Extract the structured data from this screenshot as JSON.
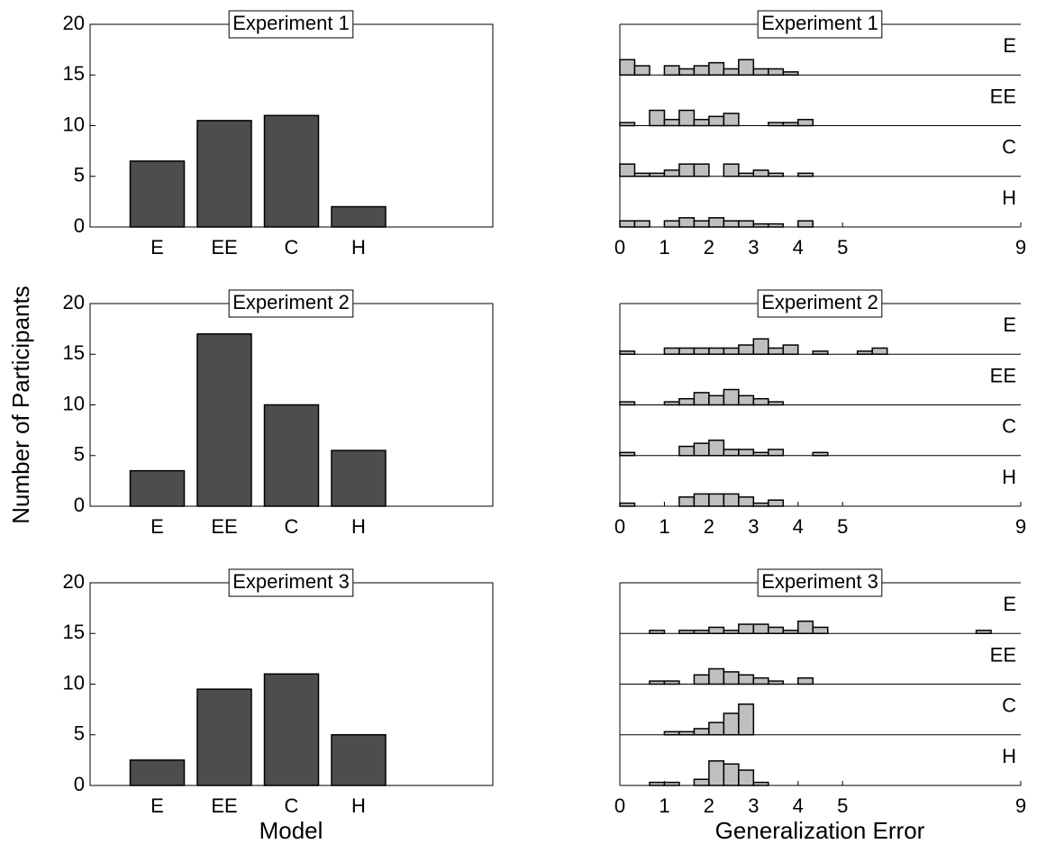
{
  "chart_data": [
    {
      "type": "bar",
      "title": "Experiment 1",
      "categories": [
        "E",
        "EE",
        "C",
        "H"
      ],
      "values": [
        6.5,
        10.5,
        11,
        2
      ],
      "color": "#4d4d4d",
      "ylim": [
        0,
        20
      ],
      "yticks": [
        0,
        5,
        10,
        15,
        20
      ]
    },
    {
      "type": "bar",
      "title": "Experiment 2",
      "categories": [
        "E",
        "EE",
        "C",
        "H"
      ],
      "values": [
        3.5,
        17,
        10,
        5.5
      ],
      "color": "#4d4d4d",
      "ylim": [
        0,
        20
      ],
      "yticks": [
        0,
        5,
        10,
        15,
        20
      ],
      "ylabel": "Number of Participants"
    },
    {
      "type": "bar",
      "title": "Experiment 3",
      "categories": [
        "E",
        "EE",
        "C",
        "H"
      ],
      "values": [
        2.5,
        9.5,
        11,
        5
      ],
      "color": "#4d4d4d",
      "ylim": [
        0,
        20
      ],
      "yticks": [
        0,
        5,
        10,
        15,
        20
      ],
      "xlabel": "Model"
    },
    {
      "type": "histogram",
      "title": "Experiment 1",
      "color": "#bfbfbf",
      "xlim": [
        0,
        9
      ],
      "xticks": [
        0,
        1,
        2,
        3,
        4,
        5,
        9
      ],
      "bins": [
        0,
        0.333,
        0.667,
        1,
        1.333,
        1.667,
        2,
        2.333,
        2.667,
        3,
        3.333,
        3.667,
        4,
        4.333,
        4.667,
        5,
        5.333,
        5.667,
        6,
        6.333,
        6.667,
        7,
        7.333,
        7.667,
        8,
        8.333,
        8.667,
        9
      ],
      "series": [
        {
          "name": "E",
          "values": [
            5,
            3,
            0,
            3,
            2,
            3,
            4,
            2,
            5,
            2,
            2,
            1,
            0,
            0,
            0,
            0,
            0,
            0,
            0,
            0,
            0,
            0,
            0,
            0,
            0,
            0,
            0
          ]
        },
        {
          "name": "EE",
          "values": [
            1,
            0,
            5,
            2,
            5,
            2,
            3,
            4,
            0,
            0,
            1,
            1,
            2,
            0,
            0,
            0,
            0,
            0,
            0,
            0,
            0,
            0,
            0,
            0,
            0,
            0,
            0
          ]
        },
        {
          "name": "C",
          "values": [
            4,
            1,
            1,
            2,
            4,
            4,
            0,
            4,
            1,
            2,
            1,
            0,
            1,
            0,
            0,
            0,
            0,
            0,
            0,
            0,
            0,
            0,
            0,
            0,
            0,
            0,
            0
          ]
        },
        {
          "name": "H",
          "values": [
            2,
            2,
            0,
            2,
            3,
            2,
            3,
            2,
            2,
            1,
            1,
            0,
            2,
            0,
            0,
            0,
            0,
            0,
            0,
            0,
            0,
            0,
            0,
            0,
            0,
            0,
            0
          ]
        }
      ]
    },
    {
      "type": "histogram",
      "title": "Experiment 2",
      "color": "#bfbfbf",
      "xlim": [
        0,
        9
      ],
      "xticks": [
        0,
        1,
        2,
        3,
        4,
        5,
        9
      ],
      "bins": [
        0,
        0.333,
        0.667,
        1,
        1.333,
        1.667,
        2,
        2.333,
        2.667,
        3,
        3.333,
        3.667,
        4,
        4.333,
        4.667,
        5,
        5.333,
        5.667,
        6,
        6.333,
        6.667,
        7,
        7.333,
        7.667,
        8,
        8.333,
        8.667,
        9
      ],
      "series": [
        {
          "name": "E",
          "values": [
            1,
            0,
            0,
            2,
            2,
            2,
            2,
            2,
            3,
            5,
            2,
            3,
            0,
            1,
            0,
            0,
            1,
            2,
            0,
            0,
            0,
            0,
            0,
            0,
            0,
            0,
            0
          ]
        },
        {
          "name": "EE",
          "values": [
            1,
            0,
            0,
            1,
            2,
            4,
            3,
            5,
            3,
            2,
            1,
            0,
            0,
            0,
            0,
            0,
            0,
            0,
            0,
            0,
            0,
            0,
            0,
            0,
            0,
            0,
            0
          ]
        },
        {
          "name": "C",
          "values": [
            1,
            0,
            0,
            0,
            3,
            4,
            5,
            2,
            2,
            1,
            2,
            0,
            0,
            1,
            0,
            0,
            0,
            0,
            0,
            0,
            0,
            0,
            0,
            0,
            0,
            0,
            0
          ]
        },
        {
          "name": "H",
          "values": [
            1,
            0,
            0,
            0,
            3,
            4,
            4,
            4,
            3,
            1,
            2,
            0,
            0,
            0,
            0,
            0,
            0,
            0,
            0,
            0,
            0,
            0,
            0,
            0,
            0,
            0,
            0
          ]
        }
      ]
    },
    {
      "type": "histogram",
      "title": "Experiment 3",
      "color": "#bfbfbf",
      "xlim": [
        0,
        9
      ],
      "xticks": [
        0,
        1,
        2,
        3,
        4,
        5,
        9
      ],
      "xlabel": "Generalization Error",
      "bins": [
        0,
        0.333,
        0.667,
        1,
        1.333,
        1.667,
        2,
        2.333,
        2.667,
        3,
        3.333,
        3.667,
        4,
        4.333,
        4.667,
        5,
        5.333,
        5.667,
        6,
        6.333,
        6.667,
        7,
        7.333,
        7.667,
        8,
        8.333,
        8.667,
        9
      ],
      "series": [
        {
          "name": "E",
          "values": [
            0,
            0,
            1,
            0,
            1,
            1,
            2,
            1,
            3,
            3,
            2,
            1,
            4,
            2,
            0,
            0,
            0,
            0,
            0,
            0,
            0,
            0,
            0,
            0,
            1,
            0,
            0
          ]
        },
        {
          "name": "EE",
          "values": [
            0,
            0,
            1,
            1,
            0,
            3,
            5,
            4,
            3,
            2,
            1,
            0,
            2,
            0,
            0,
            0,
            0,
            0,
            0,
            0,
            0,
            0,
            0,
            0,
            0,
            0,
            0
          ]
        },
        {
          "name": "C",
          "values": [
            0,
            0,
            0,
            1,
            1,
            2,
            4,
            7,
            10,
            0,
            0,
            0,
            0,
            0,
            0,
            0,
            0,
            0,
            0,
            0,
            0,
            0,
            0,
            0,
            0,
            0,
            0
          ]
        },
        {
          "name": "H",
          "values": [
            0,
            0,
            1,
            1,
            0,
            2,
            8,
            7,
            5,
            1,
            0,
            0,
            0,
            0,
            0,
            0,
            0,
            0,
            0,
            0,
            0,
            0,
            0,
            0,
            0,
            0,
            0
          ]
        }
      ]
    }
  ]
}
